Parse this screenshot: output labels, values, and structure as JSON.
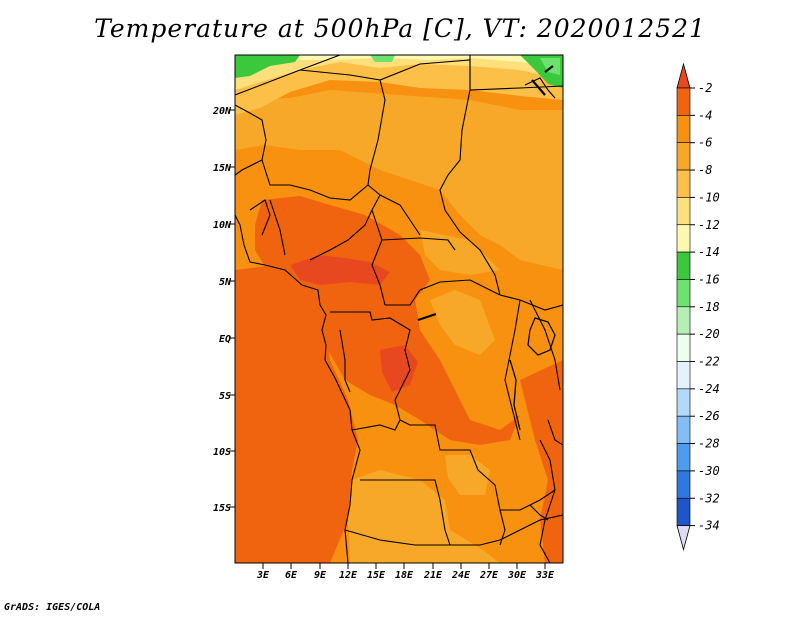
{
  "title": "Temperature at 500hPa [C], VT: 2020012521",
  "footer": "GrADS: IGES/COLA",
  "map": {
    "lat_labels": [
      "20N",
      "15N",
      "10N",
      "5N",
      "EQ",
      "5S",
      "10S",
      "15S"
    ],
    "lon_labels": [
      "3E",
      "6E",
      "9E",
      "12E",
      "15E",
      "18E",
      "21E",
      "24E",
      "27E",
      "30E",
      "33E"
    ]
  },
  "colorbar": {
    "levels": [
      {
        "label": "-2",
        "color": "#f06410"
      },
      {
        "label": "-4",
        "color": "#f89010"
      },
      {
        "label": "-6",
        "color": "#f8a828"
      },
      {
        "label": "-8",
        "color": "#fcc048"
      },
      {
        "label": "-10",
        "color": "#fde07c"
      },
      {
        "label": "-12",
        "color": "#fcf8b0"
      },
      {
        "label": "-14",
        "color": "#3cc83c"
      },
      {
        "label": "-16",
        "color": "#6ee26e"
      },
      {
        "label": "-18",
        "color": "#b4f0b4"
      },
      {
        "label": "-20",
        "color": "#eefeee"
      },
      {
        "label": "-22",
        "color": "#e4f2fc"
      },
      {
        "label": "-24",
        "color": "#b4d8f8"
      },
      {
        "label": "-26",
        "color": "#82bef4"
      },
      {
        "label": "-28",
        "color": "#4e9cf0"
      },
      {
        "label": "-30",
        "color": "#2e78e0"
      },
      {
        "label": "-32",
        "color": "#1c56c8"
      },
      {
        "label": "-34",
        "color": "#0e3694"
      }
    ],
    "top_arrow_color": "#e84820",
    "bottom_arrow_color": "#dcdcf4"
  }
}
